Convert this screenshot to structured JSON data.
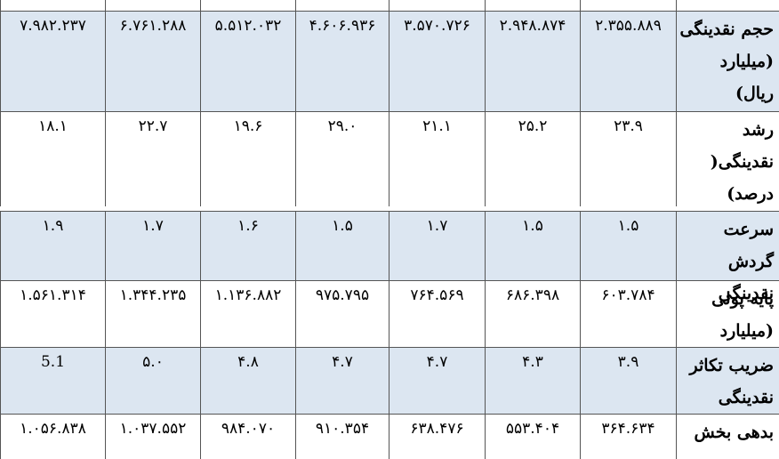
{
  "table": {
    "rows": [
      {
        "label": "حجم نقدینگی (میلیارد ریال)",
        "cells": [
          "۲.۳۵۵.۸۸۹",
          "۲.۹۴۸.۸۷۴",
          "۳.۵۷۰.۷۲۶",
          "۴.۶۰۶.۹۳۶",
          "۵.۵۱۲.۰۳۲",
          "۶.۷۶۱.۲۸۸",
          "۷.۹۸۲.۲۳۷"
        ]
      },
      {
        "label": "رشد نقدینگی( درصد)",
        "cells": [
          "۲۳.۹",
          "۲۵.۲",
          "۲۱.۱",
          "۲۹.۰",
          "۱۹.۶",
          "۲۲.۷",
          "۱۸.۱"
        ]
      },
      {
        "label": "سرعت گردش نقدینگی",
        "cells": [
          "۱.۵",
          "۱.۵",
          "۱.۷",
          "۱.۵",
          "۱.۶",
          "۱.۷",
          "۱.۹"
        ]
      },
      {
        "label": "پایه پولی (میلیارد ریال)",
        "cells": [
          "۶۰۳.۷۸۴",
          "۶۸۶.۳۹۸",
          "۷۶۴.۵۶۹",
          "۹۷۵.۷۹۵",
          "۱.۱۳۶.۸۸۲",
          "۱.۳۴۴.۲۳۵",
          "۱.۵۶۱.۳۱۴"
        ]
      },
      {
        "label": "ضریب تکاثر نقدینگی",
        "cells": [
          "۳.۹",
          "۴.۳",
          "۴.۷",
          "۴.۷",
          "۴.۸",
          "۵.۰",
          "5.1"
        ]
      },
      {
        "label": "بدهی بخش",
        "cells": [
          "۳۶۴.۶۳۴",
          "۵۵۳.۴۰۴",
          "۶۳۸.۴۷۶",
          "۹۱۰.۳۵۴",
          "۹۸۴.۰۷۰",
          "۱.۰۳۷.۵۵۲",
          "۱.۰۵۶.۸۳۸"
        ]
      }
    ]
  }
}
